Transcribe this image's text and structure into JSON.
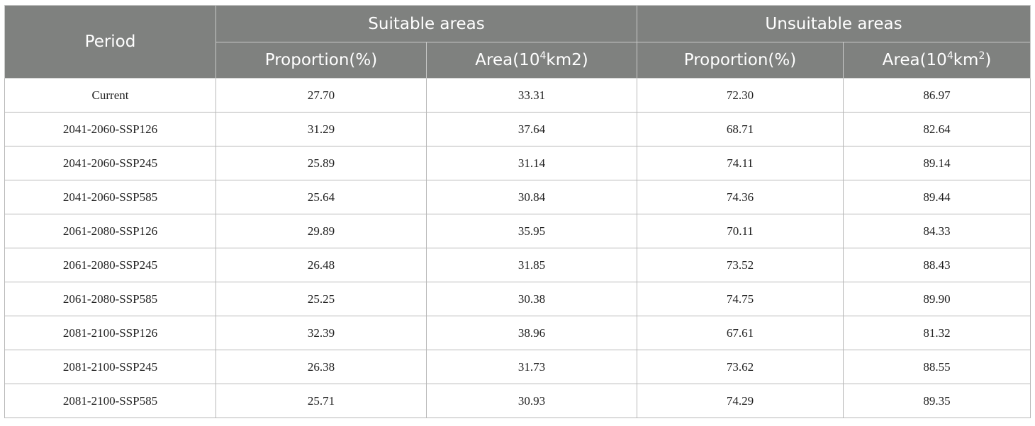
{
  "table": {
    "headers": {
      "period": "Period",
      "suitable_group": "Suitable areas",
      "unsuitable_group": "Unsuitable areas",
      "suitable_proportion": "Proportion(%)",
      "suitable_area_prefix": "Area(10",
      "suitable_area_sup": "4",
      "suitable_area_suffix": "km2)",
      "unsuitable_proportion": "Proportion(%)",
      "unsuitable_area_prefix": "Area(10",
      "unsuitable_area_sup": "4",
      "unsuitable_area_mid": "km",
      "unsuitable_area_sup2": "2",
      "unsuitable_area_suffix": ")"
    },
    "rows": [
      [
        "Current",
        "27.70",
        "33.31",
        "72.30",
        "86.97"
      ],
      [
        "2041-2060-SSP126",
        "31.29",
        "37.64",
        "68.71",
        "82.64"
      ],
      [
        "2041-2060-SSP245",
        "25.89",
        "31.14",
        "74.11",
        "89.14"
      ],
      [
        "2041-2060-SSP585",
        "25.64",
        "30.84",
        "74.36",
        "89.44"
      ],
      [
        "2061-2080-SSP126",
        "29.89",
        "35.95",
        "70.11",
        "84.33"
      ],
      [
        "2061-2080-SSP245",
        "26.48",
        "31.85",
        "73.52",
        "88.43"
      ],
      [
        "2061-2080-SSP585",
        "25.25",
        "30.38",
        "74.75",
        "89.90"
      ],
      [
        "2081-2100-SSP126",
        "32.39",
        "38.96",
        "67.61",
        "81.32"
      ],
      [
        "2081-2100-SSP245",
        "26.38",
        "31.73",
        "73.62",
        "88.55"
      ],
      [
        "2081-2100-SSP585",
        "25.71",
        "30.93",
        "74.29",
        "89.35"
      ]
    ],
    "colors": {
      "header_bg": "#7f817f",
      "header_text": "#ffffff",
      "grid_line": "#b8b8b8"
    }
  }
}
